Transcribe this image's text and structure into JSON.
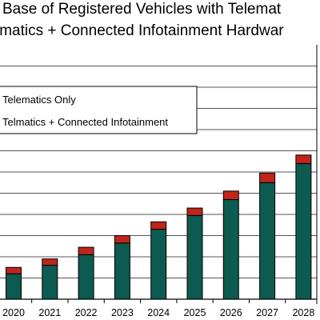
{
  "chart_data": {
    "type": "bar",
    "stacked": true,
    "title_lines": [
      "Base of Registered Vehicles with Telemat",
      "lmatics + Connected Infotainment Hardwar"
    ],
    "categories": [
      "2020",
      "2021",
      "2022",
      "2023",
      "2024",
      "2025",
      "2026",
      "2027",
      "2028"
    ],
    "series": [
      {
        "name": "Telmatics + Connected Infotainment",
        "color": "#0d5a50",
        "values": [
          1.2,
          1.6,
          2.1,
          2.65,
          3.3,
          3.95,
          4.7,
          5.5,
          6.4
        ]
      },
      {
        "name": "Telematics Only",
        "color": "#c0251b",
        "values": [
          0.3,
          0.3,
          0.35,
          0.35,
          0.35,
          0.35,
          0.4,
          0.45,
          0.4
        ]
      }
    ],
    "ylim": [
      0,
      12
    ],
    "gridlines": true,
    "legend_position": "top-left",
    "legend_entries": [
      "Telematics Only",
      "Telmatics + Connected Infotainment"
    ]
  }
}
